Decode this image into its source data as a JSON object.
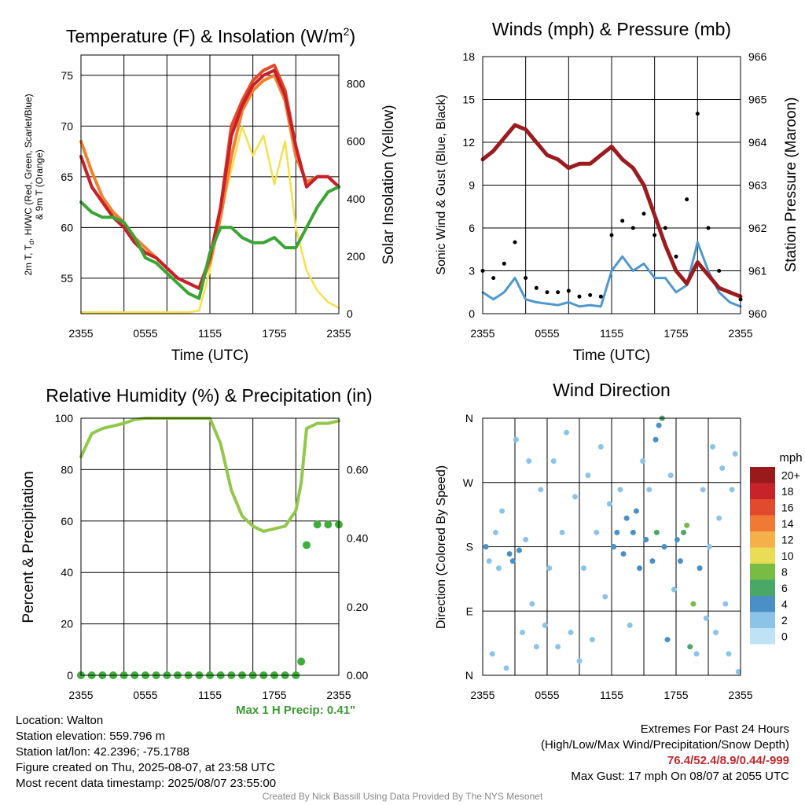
{
  "colors": {
    "temp_red": "#c8202a",
    "dew_green": "#3aa535",
    "heat_scarlet": "#e34a2b",
    "temp9m_orange": "#f0822e",
    "insolation_yellow": "#f7e04a",
    "wind_blue": "#4e98cf",
    "gust_black": "#000000",
    "pressure_maroon": "#9b1b1e",
    "rh_green": "#92c84a",
    "precip_green": "#3fae3c",
    "extremes_red": "#c0282d"
  },
  "time_ticks": [
    "2355",
    "0555",
    "1155",
    "1755",
    "2355"
  ],
  "panels": {
    "temperature": {
      "title": "Temperature (F) & Insolation (W/m",
      "title_sup": "2",
      "title_close": ")",
      "xlabel": "Time (UTC)",
      "ylabel_line1": "2m T, T",
      "ylabel_sub": "d",
      "ylabel_line1_rest": ", HI/WC (Red, Green, Scarlet/Blue)",
      "ylabel_line2": "& 9m T (Orange)",
      "ylabel_right": "Solar Insolation (Yellow)",
      "left_ticks": [
        "55",
        "60",
        "65",
        "70",
        "75"
      ],
      "right_ticks": [
        "0",
        "200",
        "400",
        "600",
        "800"
      ]
    },
    "winds": {
      "title": "Winds (mph) & Pressure (mb)",
      "xlabel": "Time (UTC)",
      "ylabel": "Sonic Wind & Gust (Blue, Black)",
      "ylabel_right": "Station Pressure (Maroon)",
      "left_ticks": [
        "0",
        "3",
        "6",
        "9",
        "12",
        "15",
        "18"
      ],
      "right_ticks": [
        "960",
        "961",
        "962",
        "963",
        "964",
        "965",
        "966"
      ]
    },
    "humidity": {
      "title": "Relative Humidity (%) & Precipitation (in)",
      "ylabel": "Percent & Precipitation",
      "left_ticks": [
        "0",
        "20",
        "40",
        "60",
        "80",
        "100"
      ],
      "right_ticks": [
        "0.00",
        "0.20",
        "0.40",
        "0.60"
      ],
      "max_precip": "Max 1 H Precip: 0.41\""
    },
    "direction": {
      "title": "Wind Direction",
      "ylabel": "Direction (Colored By Speed)",
      "left_ticks": [
        "N",
        "E",
        "S",
        "W",
        "N"
      ],
      "legend_title": "mph",
      "legend_labels": [
        "0",
        "2",
        "4",
        "6",
        "8",
        "10",
        "12",
        "14",
        "16",
        "18",
        "20+"
      ],
      "legend_colors": [
        "#bfe3f5",
        "#8cc4e8",
        "#4a8fc6",
        "#4aa866",
        "#78bc44",
        "#e8dd55",
        "#f6b04a",
        "#f07a34",
        "#e24a2d",
        "#c8232a",
        "#9a1a1c"
      ]
    }
  },
  "station": {
    "location": "Location: Walton",
    "elevation": "Station elevation: 559.796 m",
    "latlon": "Station lat/lon: 42.2396; -75.1788",
    "created": "Figure created on Thu, 2025-08-07, at 23:58 UTC",
    "recent": "Most recent data timestamp: 2025/08/07 23:55:00"
  },
  "extremes": {
    "heading": "Extremes For Past 24 Hours",
    "subheading": "(High/Low/Max Wind/Precipitation/Snow Depth)",
    "values": "76.4/52.4/8.9/0.44/-999",
    "max_gust": "Max Gust: 17 mph On 08/07 at 2055 UTC"
  },
  "credit": "Created By Nick Bassill Using Data Provided By The NYS Mesonet",
  "chart_data": [
    {
      "type": "line",
      "title": "Temperature (F) & Insolation (W/m2)",
      "xlabel": "Time (UTC)",
      "x": [
        0,
        1,
        2,
        3,
        4,
        5,
        6,
        7,
        8,
        9,
        10,
        11,
        12,
        13,
        14,
        15,
        16,
        17,
        18,
        19,
        20,
        21,
        22,
        23,
        24
      ],
      "xlim": [
        0,
        24
      ],
      "ylim": [
        51.5,
        77
      ],
      "y2lim": [
        0,
        900
      ],
      "series": [
        {
          "name": "2m T",
          "axis": "left",
          "values": [
            67,
            64,
            62.5,
            61,
            60,
            58.5,
            57.5,
            57,
            56,
            55,
            54.5,
            54,
            57,
            62,
            69,
            72,
            74,
            75,
            75.5,
            73,
            68,
            64,
            65,
            65,
            64
          ]
        },
        {
          "name": "Td",
          "axis": "left",
          "values": [
            62.5,
            61.5,
            61,
            61,
            60.5,
            59,
            57,
            56.5,
            55.5,
            54.5,
            53.5,
            53,
            57.5,
            60,
            60,
            59,
            58.5,
            58.5,
            59,
            58,
            58,
            60,
            62,
            63.5,
            64
          ]
        },
        {
          "name": "HI/WC",
          "axis": "left",
          "values": [
            67,
            64,
            62.5,
            61,
            60,
            58.5,
            57.5,
            57,
            56,
            55,
            54.5,
            54,
            57,
            62,
            70,
            72.5,
            74.5,
            75.5,
            76,
            73.5,
            68,
            64,
            65,
            65,
            64
          ]
        },
        {
          "name": "9m T",
          "axis": "left",
          "values": [
            68.5,
            65.5,
            63,
            61.5,
            60.5,
            59,
            58,
            57,
            56,
            55,
            54.5,
            54,
            56.5,
            61,
            67,
            71.5,
            73.5,
            74.5,
            75,
            72.5,
            67,
            64.5,
            65,
            65,
            64
          ]
        },
        {
          "name": "Insolation",
          "axis": "right",
          "values": [
            5,
            5,
            5,
            5,
            5,
            5,
            5,
            5,
            5,
            5,
            5,
            10,
            150,
            350,
            500,
            650,
            550,
            620,
            450,
            600,
            300,
            150,
            80,
            40,
            20
          ]
        }
      ]
    },
    {
      "type": "line",
      "title": "Winds (mph) & Pressure (mb)",
      "xlabel": "Time (UTC)",
      "x": [
        0,
        1,
        2,
        3,
        4,
        5,
        6,
        7,
        8,
        9,
        10,
        11,
        12,
        13,
        14,
        15,
        16,
        17,
        18,
        19,
        20,
        21,
        22,
        23,
        24
      ],
      "xlim": [
        0,
        24
      ],
      "ylim": [
        0,
        18
      ],
      "y2lim": [
        960,
        966
      ],
      "series": [
        {
          "name": "Sonic Wind",
          "axis": "left",
          "values": [
            1.5,
            1,
            1.5,
            2.5,
            1,
            0.8,
            0.7,
            0.6,
            0.8,
            0.5,
            0.6,
            0.5,
            3,
            4,
            3,
            3.5,
            2.5,
            2.5,
            1.5,
            2,
            5,
            3,
            1.5,
            0.8,
            0.5
          ]
        },
        {
          "name": "Gust",
          "axis": "left",
          "values": [
            3,
            2.5,
            3.5,
            5,
            2.5,
            1.8,
            1.5,
            1.5,
            1.6,
            1.2,
            1.3,
            1.2,
            5.5,
            6.5,
            6,
            7,
            5.5,
            6,
            4,
            8,
            14,
            6,
            3,
            1.5,
            1
          ]
        },
        {
          "name": "Station Pressure",
          "axis": "right",
          "values": [
            963.6,
            963.8,
            964.1,
            964.4,
            964.3,
            964.0,
            963.7,
            963.6,
            963.4,
            963.5,
            963.5,
            963.7,
            963.9,
            963.6,
            963.4,
            963.0,
            962.3,
            961.6,
            961.0,
            960.7,
            961.2,
            960.9,
            960.6,
            960.5,
            960.4
          ]
        }
      ]
    },
    {
      "type": "line",
      "title": "Relative Humidity (%) & Precipitation (in)",
      "x": [
        0,
        1,
        2,
        3,
        4,
        5,
        6,
        7,
        8,
        9,
        10,
        11,
        12,
        13,
        14,
        15,
        16,
        17,
        18,
        19,
        20,
        20.5,
        21,
        22,
        23,
        24
      ],
      "xlim": [
        0,
        24
      ],
      "ylim": [
        0,
        100
      ],
      "y2lim": [
        0,
        0.75
      ],
      "series": [
        {
          "name": "Relative Humidity",
          "axis": "left",
          "values": [
            85,
            94,
            96,
            97,
            98,
            99.5,
            100,
            100,
            100,
            100,
            100,
            100,
            100,
            90,
            72,
            62,
            58,
            56,
            57,
            58,
            64,
            75,
            96,
            98,
            98,
            99
          ]
        },
        {
          "name": "Precipitation",
          "axis": "right",
          "values": [
            0,
            0,
            0,
            0,
            0,
            0,
            0,
            0,
            0,
            0,
            0,
            0,
            0,
            0,
            0,
            0,
            0,
            0,
            0,
            0,
            0,
            0.04,
            0.38,
            0.44,
            0.44,
            0.44
          ]
        }
      ]
    },
    {
      "type": "scatter",
      "title": "Wind Direction",
      "ylabel": "Direction (Colored By Speed)",
      "xlim": [
        0,
        24
      ],
      "ylim": [
        0,
        360
      ],
      "points": [
        {
          "x": 0.3,
          "y": 180,
          "s": 3
        },
        {
          "x": 0.6,
          "y": 160,
          "s": 2
        },
        {
          "x": 0.9,
          "y": 30,
          "s": 1
        },
        {
          "x": 1.2,
          "y": 200,
          "s": 1
        },
        {
          "x": 1.5,
          "y": 150,
          "s": 2
        },
        {
          "x": 1.8,
          "y": 230,
          "s": 1
        },
        {
          "x": 2.2,
          "y": 10,
          "s": 1
        },
        {
          "x": 2.5,
          "y": 170,
          "s": 3
        },
        {
          "x": 2.8,
          "y": 160,
          "s": 4
        },
        {
          "x": 3.1,
          "y": 330,
          "s": 1
        },
        {
          "x": 3.4,
          "y": 175,
          "s": 4
        },
        {
          "x": 3.7,
          "y": 60,
          "s": 1
        },
        {
          "x": 4.0,
          "y": 190,
          "s": 2
        },
        {
          "x": 4.3,
          "y": 300,
          "s": 1
        },
        {
          "x": 4.6,
          "y": 100,
          "s": 1
        },
        {
          "x": 5.0,
          "y": 40,
          "s": 1
        },
        {
          "x": 5.4,
          "y": 260,
          "s": 1
        },
        {
          "x": 5.8,
          "y": 70,
          "s": 1
        },
        {
          "x": 6.2,
          "y": 150,
          "s": 2
        },
        {
          "x": 6.6,
          "y": 300,
          "s": 1
        },
        {
          "x": 7.0,
          "y": 40,
          "s": 1
        },
        {
          "x": 7.4,
          "y": 200,
          "s": 2
        },
        {
          "x": 7.8,
          "y": 340,
          "s": 1
        },
        {
          "x": 8.2,
          "y": 60,
          "s": 1
        },
        {
          "x": 8.6,
          "y": 250,
          "s": 1
        },
        {
          "x": 9.0,
          "y": 20,
          "s": 1
        },
        {
          "x": 9.4,
          "y": 150,
          "s": 1
        },
        {
          "x": 9.8,
          "y": 280,
          "s": 1
        },
        {
          "x": 10.2,
          "y": 50,
          "s": 1
        },
        {
          "x": 10.6,
          "y": 200,
          "s": 2
        },
        {
          "x": 11.0,
          "y": 320,
          "s": 1
        },
        {
          "x": 11.4,
          "y": 110,
          "s": 1
        },
        {
          "x": 11.8,
          "y": 240,
          "s": 1
        },
        {
          "x": 12.2,
          "y": 180,
          "s": 3
        },
        {
          "x": 12.5,
          "y": 200,
          "s": 4
        },
        {
          "x": 12.8,
          "y": 260,
          "s": 2
        },
        {
          "x": 13.1,
          "y": 170,
          "s": 3
        },
        {
          "x": 13.4,
          "y": 220,
          "s": 4
        },
        {
          "x": 13.7,
          "y": 70,
          "s": 2
        },
        {
          "x": 14.0,
          "y": 200,
          "s": 3
        },
        {
          "x": 14.3,
          "y": 230,
          "s": 4
        },
        {
          "x": 14.6,
          "y": 150,
          "s": 3
        },
        {
          "x": 14.9,
          "y": 300,
          "s": 2
        },
        {
          "x": 15.2,
          "y": 190,
          "s": 3
        },
        {
          "x": 15.5,
          "y": 260,
          "s": 2
        },
        {
          "x": 15.8,
          "y": 160,
          "s": 4
        },
        {
          "x": 16.1,
          "y": 330,
          "s": 3
        },
        {
          "x": 16.4,
          "y": 350,
          "s": 4
        },
        {
          "x": 16.7,
          "y": 360,
          "s": 6
        },
        {
          "x": 16.2,
          "y": 200,
          "s": 6
        },
        {
          "x": 16.9,
          "y": 180,
          "s": 4
        },
        {
          "x": 17.2,
          "y": 50,
          "s": 3
        },
        {
          "x": 17.5,
          "y": 280,
          "s": 2
        },
        {
          "x": 17.8,
          "y": 120,
          "s": 2
        },
        {
          "x": 18.1,
          "y": 190,
          "s": 3
        },
        {
          "x": 18.4,
          "y": 160,
          "s": 4
        },
        {
          "x": 18.7,
          "y": 200,
          "s": 6
        },
        {
          "x": 19.0,
          "y": 210,
          "s": 7
        },
        {
          "x": 19.3,
          "y": 40,
          "s": 6
        },
        {
          "x": 19.6,
          "y": 100,
          "s": 7
        },
        {
          "x": 19.9,
          "y": 30,
          "s": 2
        },
        {
          "x": 20.2,
          "y": 150,
          "s": 3
        },
        {
          "x": 20.5,
          "y": 260,
          "s": 2
        },
        {
          "x": 20.8,
          "y": 80,
          "s": 1
        },
        {
          "x": 21.1,
          "y": 180,
          "s": 2
        },
        {
          "x": 21.4,
          "y": 320,
          "s": 1
        },
        {
          "x": 21.7,
          "y": 60,
          "s": 1
        },
        {
          "x": 22.0,
          "y": 220,
          "s": 1
        },
        {
          "x": 22.3,
          "y": 290,
          "s": 1
        },
        {
          "x": 22.6,
          "y": 100,
          "s": 2
        },
        {
          "x": 22.9,
          "y": 30,
          "s": 1
        },
        {
          "x": 23.2,
          "y": 260,
          "s": 1
        },
        {
          "x": 23.5,
          "y": 310,
          "s": 1
        },
        {
          "x": 23.8,
          "y": 5,
          "s": 1
        }
      ]
    }
  ]
}
